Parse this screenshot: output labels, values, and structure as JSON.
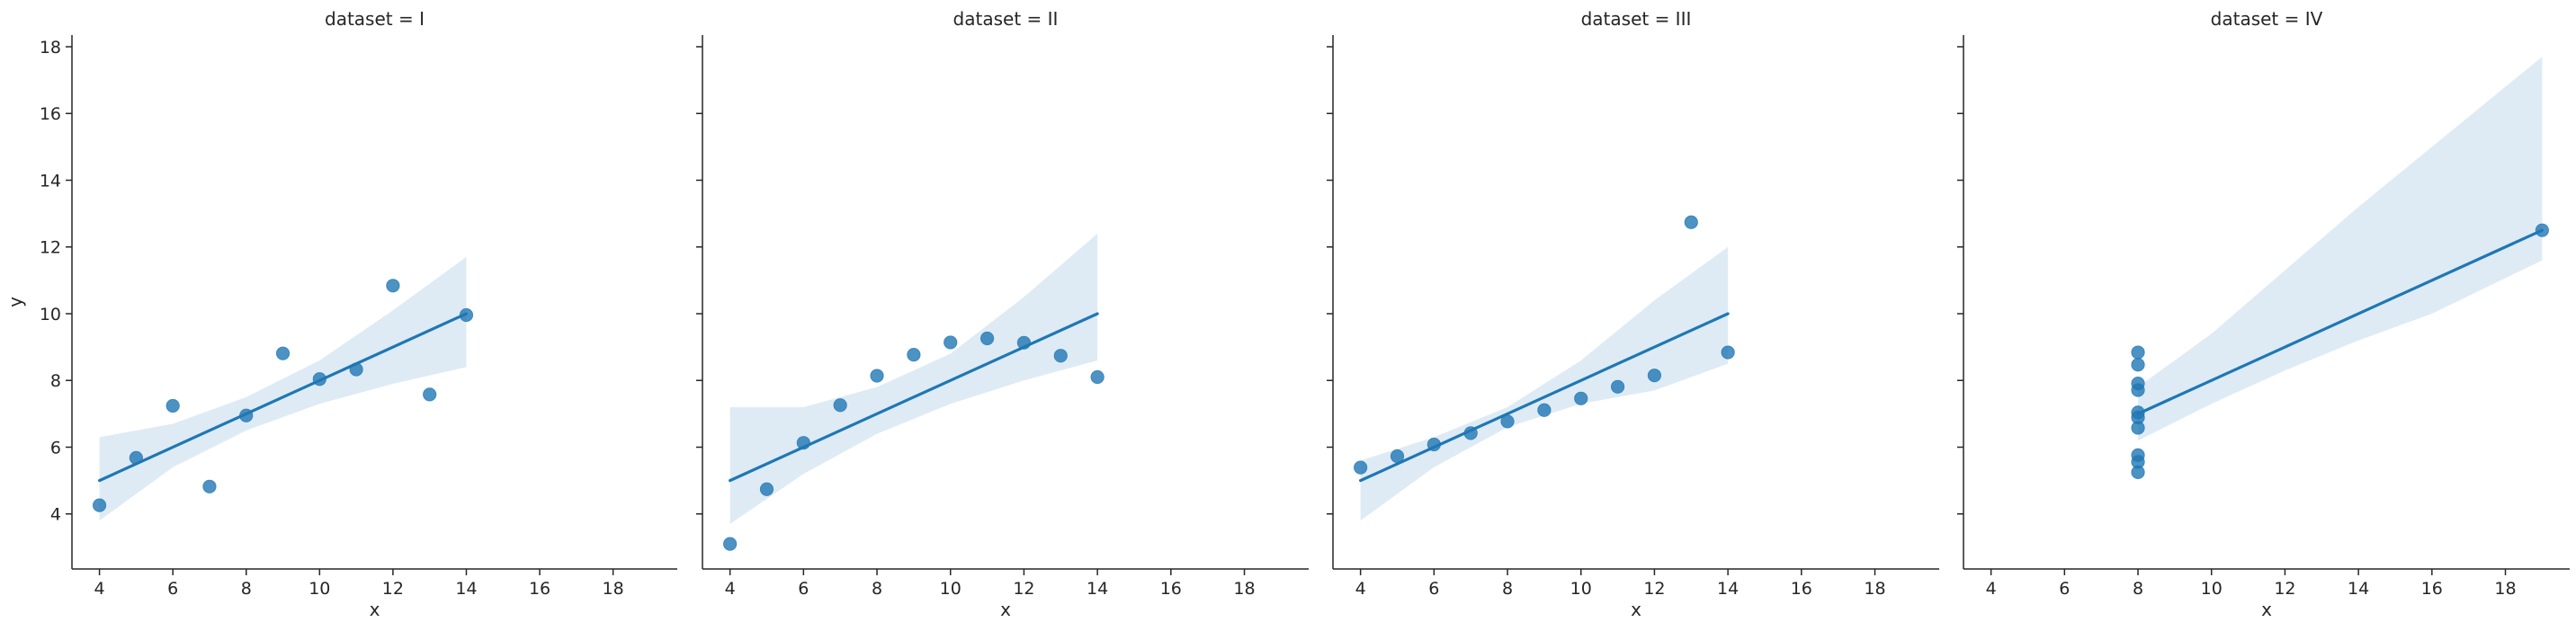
{
  "chart_data": [
    {
      "type": "scatter",
      "title": "dataset = I",
      "xlabel": "x",
      "ylabel": "y",
      "xlim": [
        3.25,
        19.75
      ],
      "ylim": [
        2.35,
        18.35
      ],
      "xticks": [
        4,
        6,
        8,
        10,
        12,
        14,
        16,
        18
      ],
      "yticks": [
        4,
        6,
        8,
        10,
        12,
        14,
        16,
        18
      ],
      "series": [
        {
          "x": [
            10,
            8,
            13,
            9,
            11,
            14,
            6,
            4,
            12,
            7,
            5
          ],
          "y": [
            8.04,
            6.95,
            7.58,
            8.81,
            8.33,
            9.96,
            7.24,
            4.26,
            10.84,
            4.82,
            5.68
          ]
        }
      ],
      "regression": {
        "x": [
          4,
          14
        ],
        "y": [
          5.0,
          10.0
        ]
      },
      "confidence_band": {
        "x": [
          4,
          6,
          8,
          10,
          12,
          14
        ],
        "lower": [
          3.8,
          5.4,
          6.5,
          7.3,
          7.9,
          8.4
        ],
        "upper": [
          6.3,
          6.7,
          7.5,
          8.6,
          10.1,
          11.7
        ]
      }
    },
    {
      "type": "scatter",
      "title": "dataset = II",
      "xlabel": "x",
      "ylabel": "",
      "xlim": [
        3.25,
        19.75
      ],
      "ylim": [
        2.35,
        18.35
      ],
      "xticks": [
        4,
        6,
        8,
        10,
        12,
        14,
        16,
        18
      ],
      "yticks": [
        4,
        6,
        8,
        10,
        12,
        14,
        16,
        18
      ],
      "series": [
        {
          "x": [
            10,
            8,
            13,
            9,
            11,
            14,
            6,
            4,
            12,
            7,
            5
          ],
          "y": [
            9.14,
            8.14,
            8.74,
            8.77,
            9.26,
            8.1,
            6.13,
            3.1,
            9.13,
            7.26,
            4.74
          ]
        }
      ],
      "regression": {
        "x": [
          4,
          14
        ],
        "y": [
          5.0,
          10.0
        ]
      },
      "confidence_band": {
        "x": [
          4,
          6,
          8,
          10,
          12,
          14
        ],
        "lower": [
          3.7,
          5.2,
          6.4,
          7.3,
          8.0,
          8.6
        ],
        "upper": [
          7.2,
          7.2,
          7.8,
          8.8,
          10.5,
          12.4
        ]
      }
    },
    {
      "type": "scatter",
      "title": "dataset = III",
      "xlabel": "x",
      "ylabel": "",
      "xlim": [
        3.25,
        19.75
      ],
      "ylim": [
        2.35,
        18.35
      ],
      "xticks": [
        4,
        6,
        8,
        10,
        12,
        14,
        16,
        18
      ],
      "yticks": [
        4,
        6,
        8,
        10,
        12,
        14,
        16,
        18
      ],
      "series": [
        {
          "x": [
            10,
            8,
            13,
            9,
            11,
            14,
            6,
            4,
            12,
            7,
            5
          ],
          "y": [
            7.46,
            6.77,
            12.74,
            7.11,
            7.81,
            8.84,
            6.08,
            5.39,
            8.15,
            6.42,
            5.73
          ]
        }
      ],
      "regression": {
        "x": [
          4,
          14
        ],
        "y": [
          5.0,
          10.0
        ]
      },
      "confidence_band": {
        "x": [
          4,
          6,
          8,
          10,
          12,
          14
        ],
        "lower": [
          3.8,
          5.4,
          6.6,
          7.3,
          7.7,
          8.5
        ],
        "upper": [
          5.6,
          6.3,
          7.2,
          8.6,
          10.4,
          12.0
        ]
      }
    },
    {
      "type": "scatter",
      "title": "dataset = IV",
      "xlabel": "x",
      "ylabel": "",
      "xlim": [
        3.25,
        19.75
      ],
      "ylim": [
        2.35,
        18.35
      ],
      "xticks": [
        4,
        6,
        8,
        10,
        12,
        14,
        16,
        18
      ],
      "yticks": [
        4,
        6,
        8,
        10,
        12,
        14,
        16,
        18
      ],
      "series": [
        {
          "x": [
            8,
            8,
            8,
            8,
            8,
            8,
            8,
            19,
            8,
            8,
            8
          ],
          "y": [
            6.58,
            5.76,
            7.71,
            8.84,
            8.47,
            7.04,
            5.25,
            12.5,
            5.56,
            7.91,
            6.89
          ]
        }
      ],
      "regression": {
        "x": [
          8,
          19
        ],
        "y": [
          7.0,
          12.5
        ]
      },
      "confidence_band": {
        "x": [
          8,
          10,
          12,
          14,
          16,
          19
        ],
        "lower": [
          6.2,
          7.3,
          8.3,
          9.2,
          10.0,
          11.6
        ],
        "upper": [
          7.8,
          9.4,
          11.3,
          13.2,
          15.0,
          17.7
        ]
      }
    }
  ],
  "colors": {
    "points": "#1f77b4",
    "line": "#1f77b4",
    "band": "#1f77b4",
    "spine": "#262626"
  }
}
